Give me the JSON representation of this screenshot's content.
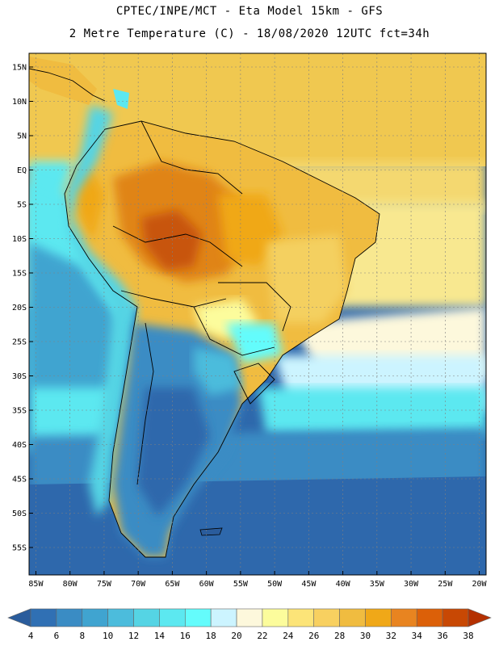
{
  "header": {
    "line1": "CPTEC/INPE/MCT -  Eta Model 15km - GFS",
    "line2": "2 Metre Temperature (C) - 18/08/2020 12UTC fct=34h"
  },
  "map": {
    "lon_range": [
      -86,
      -19
    ],
    "lat_range": [
      -59,
      17
    ],
    "lat_ticks": [
      {
        "value": 15,
        "label": "15N"
      },
      {
        "value": 10,
        "label": "10N"
      },
      {
        "value": 5,
        "label": "5N"
      },
      {
        "value": 0,
        "label": "EQ"
      },
      {
        "value": -5,
        "label": "5S"
      },
      {
        "value": -10,
        "label": "10S"
      },
      {
        "value": -15,
        "label": "15S"
      },
      {
        "value": -20,
        "label": "20S"
      },
      {
        "value": -25,
        "label": "25S"
      },
      {
        "value": -30,
        "label": "30S"
      },
      {
        "value": -35,
        "label": "35S"
      },
      {
        "value": -40,
        "label": "40S"
      },
      {
        "value": -45,
        "label": "45S"
      },
      {
        "value": -50,
        "label": "50S"
      },
      {
        "value": -55,
        "label": "55S"
      }
    ],
    "lon_ticks": [
      {
        "value": -85,
        "label": "85W"
      },
      {
        "value": -80,
        "label": "80W"
      },
      {
        "value": -75,
        "label": "75W"
      },
      {
        "value": -70,
        "label": "70W"
      },
      {
        "value": -65,
        "label": "65W"
      },
      {
        "value": -60,
        "label": "60W"
      },
      {
        "value": -55,
        "label": "55W"
      },
      {
        "value": -50,
        "label": "50W"
      },
      {
        "value": -45,
        "label": "45W"
      },
      {
        "value": -40,
        "label": "40W"
      },
      {
        "value": -35,
        "label": "35W"
      },
      {
        "value": -30,
        "label": "30W"
      },
      {
        "value": -25,
        "label": "25W"
      },
      {
        "value": -20,
        "label": "20W"
      }
    ],
    "grid": true
  },
  "colorbar": {
    "labels": [
      "4",
      "6",
      "8",
      "10",
      "12",
      "14",
      "16",
      "18",
      "20",
      "22",
      "24",
      "26",
      "28",
      "30",
      "32",
      "34",
      "36",
      "38"
    ],
    "colors": [
      "#2a5c9c",
      "#3070b4",
      "#3a8cc4",
      "#40a4d0",
      "#4cbcdc",
      "#55d4e4",
      "#5ce8f0",
      "#64fcfc",
      "#ccf4ff",
      "#fdf8dc",
      "#fcfc9c",
      "#fce478",
      "#f8d060",
      "#f0bc40",
      "#f0a818",
      "#e88420",
      "#dc6008",
      "#c84804",
      "#b43000"
    ]
  }
}
